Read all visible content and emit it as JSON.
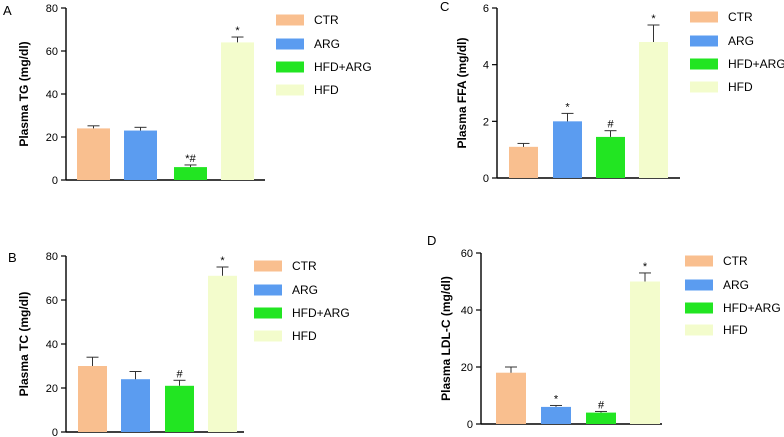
{
  "colors": {
    "CTR": "#f9bf8f",
    "ARG": "#5b9cf0",
    "HFD+ARG": "#22e522",
    "HFD": "#f3fccc"
  },
  "chart_data": [
    {
      "id": "A",
      "panel_label": "A",
      "type": "bar",
      "ylabel": "Plasma TG (mg/dl)",
      "ylim": [
        0,
        80
      ],
      "yticks": [
        0,
        20,
        40,
        60,
        80
      ],
      "categories": [
        "CTR",
        "ARG",
        "HFD+ARG",
        "HFD"
      ],
      "values": [
        24,
        23,
        6,
        64
      ],
      "errors": [
        1.2,
        1.5,
        1.0,
        2.5
      ],
      "annotations": [
        "",
        "",
        "*#",
        "*"
      ],
      "legend": [
        "CTR",
        "ARG",
        "HFD+ARG",
        "HFD"
      ]
    },
    {
      "id": "C",
      "panel_label": "C",
      "type": "bar",
      "ylabel": "Plasma FFA (mg/dl)",
      "ylim": [
        0,
        6
      ],
      "yticks": [
        0,
        2,
        4,
        6
      ],
      "categories": [
        "CTR",
        "ARG",
        "HFD+ARG",
        "HFD"
      ],
      "values": [
        1.1,
        2.0,
        1.45,
        4.8
      ],
      "errors": [
        0.12,
        0.28,
        0.22,
        0.6
      ],
      "annotations": [
        "",
        "*",
        "#",
        "*"
      ],
      "legend": [
        "CTR",
        "ARG",
        "HFD+ARG",
        "HFD"
      ]
    },
    {
      "id": "B",
      "panel_label": "B",
      "type": "bar",
      "ylabel": "Plasma TC (mg/dl)",
      "ylim": [
        0,
        80
      ],
      "yticks": [
        0,
        20,
        40,
        60,
        80
      ],
      "categories": [
        "CTR",
        "ARG",
        "HFD+ARG",
        "HFD"
      ],
      "values": [
        30,
        24,
        21,
        71
      ],
      "errors": [
        4,
        3.5,
        2.5,
        4
      ],
      "annotations": [
        "",
        "",
        "#",
        "*"
      ],
      "legend": [
        "CTR",
        "ARG",
        "HFD+ARG",
        "HFD"
      ]
    },
    {
      "id": "D",
      "panel_label": "D",
      "type": "bar",
      "ylabel": "Plasma LDL-C (mg/dl)",
      "ylim": [
        0,
        60
      ],
      "yticks": [
        0,
        20,
        40,
        60
      ],
      "categories": [
        "CTR",
        "ARG",
        "HFD+ARG",
        "HFD"
      ],
      "values": [
        18,
        6,
        4,
        50
      ],
      "errors": [
        2,
        0.5,
        0.4,
        3
      ],
      "annotations": [
        "",
        "*",
        "#",
        "*"
      ],
      "legend": [
        "CTR",
        "ARG",
        "HFD+ARG",
        "HFD"
      ]
    }
  ]
}
